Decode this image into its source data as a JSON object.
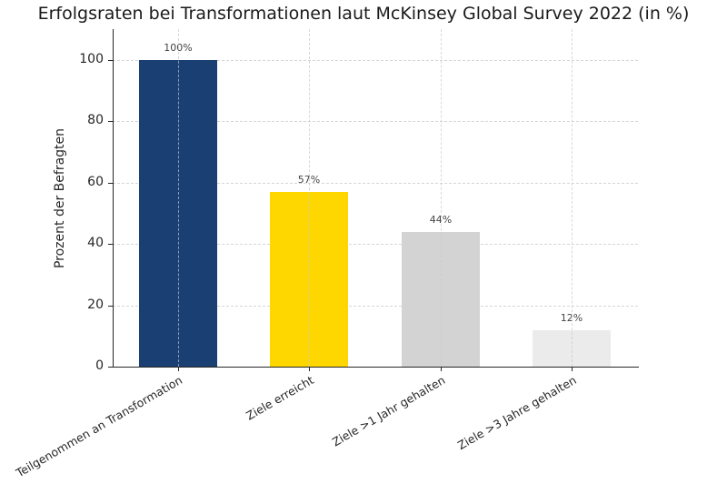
{
  "chart_data": {
    "type": "bar",
    "title": "Erfolgsraten bei Transformationen laut McKinsey Global Survey 2022 (in %)",
    "xlabel": "",
    "ylabel": "Prozent der Befragten",
    "categories": [
      "Teilgenommen an Transformation",
      "Ziele erreicht",
      "Ziele >1 Jahr gehalten",
      "Ziele >3 Jahre gehalten"
    ],
    "values": [
      100,
      57,
      44,
      12
    ],
    "data_labels": [
      "100%",
      "57%",
      "44%",
      "12%"
    ],
    "colors": [
      "#1a4073",
      "#ffd700",
      "#d3d3d3",
      "#ebebeb"
    ],
    "ylim": [
      0,
      110
    ],
    "yticks": [
      0,
      20,
      40,
      60,
      80,
      100
    ],
    "grid": true,
    "grid_style": "dashed",
    "legend": null
  }
}
